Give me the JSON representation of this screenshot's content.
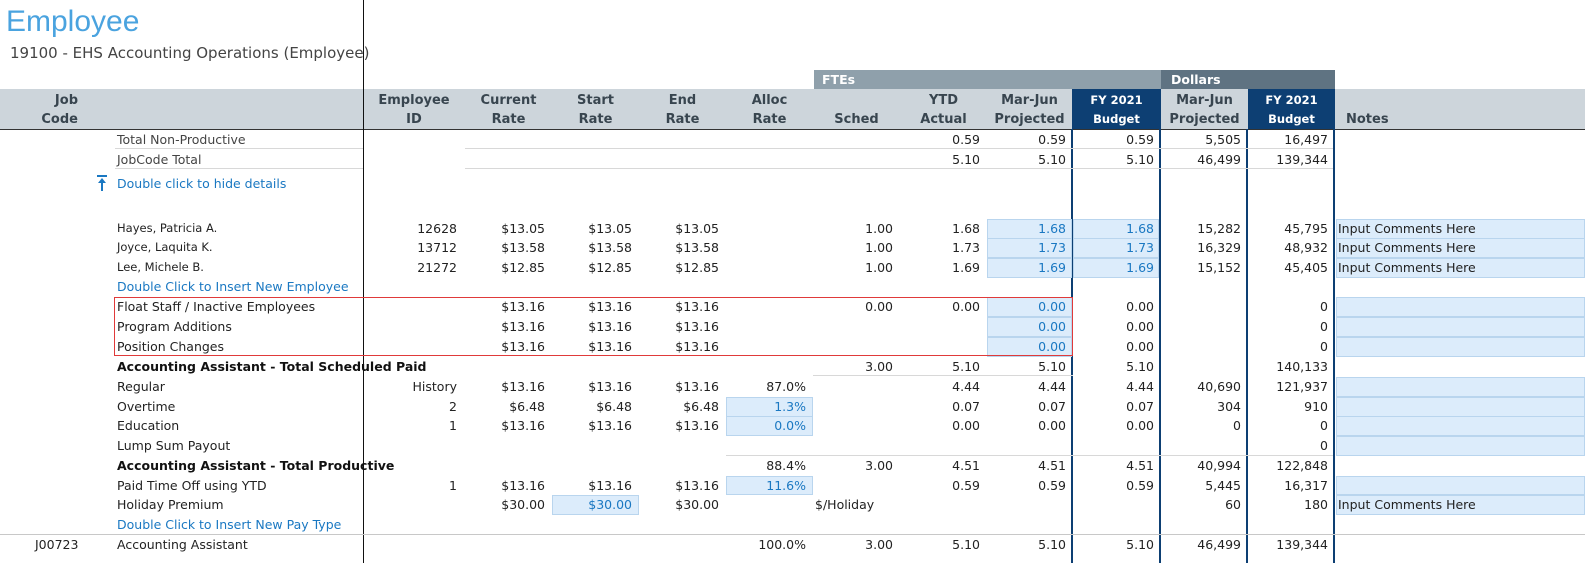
{
  "title": "Employee",
  "subtitle": "19100 - EHS Accounting Operations (Employee)",
  "group_headers": {
    "ftes": "FTEs",
    "dollars": "Dollars"
  },
  "columns": {
    "job_code": [
      "Job",
      "Code"
    ],
    "employee_id": [
      "Employee",
      "ID"
    ],
    "current_rate": [
      "Current",
      "Rate"
    ],
    "start_rate": [
      "Start",
      "Rate"
    ],
    "end_rate": [
      "End",
      "Rate"
    ],
    "alloc_rate": [
      "Alloc",
      "Rate"
    ],
    "sched": "Sched",
    "ytd_actual": [
      "YTD",
      "Actual"
    ],
    "mar_jun_projected": [
      "Mar-Jun",
      "Projected"
    ],
    "fy2021_budget": [
      "FY 2021",
      "Budget"
    ],
    "dollars_mar_jun": [
      "Mar-Jun",
      "Projected"
    ],
    "dollars_fy2021": [
      "FY 2021",
      "Budget"
    ],
    "notes": "Notes"
  },
  "totals": {
    "non_productive": {
      "label": "Total Non-Productive",
      "ytd": "0.59",
      "mj": "0.59",
      "bud": "0.59",
      "d_mj": "5,505",
      "d_bud": "16,497"
    },
    "jobcode": {
      "label": "JobCode Total",
      "ytd": "5.10",
      "mj": "5.10",
      "bud": "5.10",
      "d_mj": "46,499",
      "d_bud": "139,344"
    }
  },
  "hide_details": "Double click to hide details",
  "employees": [
    {
      "name": "Hayes, Patricia A.",
      "id": "12628",
      "cur": "$13.05",
      "start": "$13.05",
      "end": "$13.05",
      "sched": "1.00",
      "ytd": "1.68",
      "mj": "1.68",
      "bud": "1.68",
      "d_mj": "15,282",
      "d_bud": "45,795",
      "note": "Input Comments Here"
    },
    {
      "name": "Joyce, Laquita K.",
      "id": "13712",
      "cur": "$13.58",
      "start": "$13.58",
      "end": "$13.58",
      "sched": "1.00",
      "ytd": "1.73",
      "mj": "1.73",
      "bud": "1.73",
      "d_mj": "16,329",
      "d_bud": "48,932",
      "note": "Input Comments Here"
    },
    {
      "name": "Lee, Michele B.",
      "id": "21272",
      "cur": "$12.85",
      "start": "$12.85",
      "end": "$12.85",
      "sched": "1.00",
      "ytd": "1.69",
      "mj": "1.69",
      "bud": "1.69",
      "d_mj": "15,152",
      "d_bud": "45,405",
      "note": "Input Comments Here"
    }
  ],
  "insert_employee": "Double Click to Insert New Employee",
  "float_rows": [
    {
      "label": "Float Staff / Inactive Employees",
      "cur": "$13.16",
      "start": "$13.16",
      "end": "$13.16",
      "sched": "0.00",
      "ytd": "0.00",
      "mj": "0.00",
      "bud": "0.00",
      "d_bud": "0"
    },
    {
      "label": "Program Additions",
      "cur": "$13.16",
      "start": "$13.16",
      "end": "$13.16",
      "sched": "",
      "ytd": "",
      "mj": "0.00",
      "bud": "0.00",
      "d_bud": "0"
    },
    {
      "label": "Position Changes",
      "cur": "$13.16",
      "start": "$13.16",
      "end": "$13.16",
      "sched": "",
      "ytd": "",
      "mj": "0.00",
      "bud": "0.00",
      "d_bud": "0"
    }
  ],
  "total_scheduled": {
    "label_a": "Accounting Assistant",
    "label_b": " - Total Scheduled Paid",
    "sched": "3.00",
    "ytd": "5.10",
    "mj": "5.10",
    "bud": "5.10",
    "d_bud": "140,133"
  },
  "pay_rows": [
    {
      "label": "Regular",
      "id": "History",
      "cur": "$13.16",
      "start": "$13.16",
      "end": "$13.16",
      "alloc": "87.0%",
      "ytd": "4.44",
      "mj": "4.44",
      "bud": "4.44",
      "d_mj": "40,690",
      "d_bud": "121,937"
    },
    {
      "label": "Overtime",
      "id": "2",
      "cur": "$6.48",
      "start": "$6.48",
      "end": "$6.48",
      "alloc": "1.3%",
      "ytd": "0.07",
      "mj": "0.07",
      "bud": "0.07",
      "d_mj": "304",
      "d_bud": "910"
    },
    {
      "label": "Education",
      "id": "1",
      "cur": "$13.16",
      "start": "$13.16",
      "end": "$13.16",
      "alloc": "0.0%",
      "ytd": "0.00",
      "mj": "0.00",
      "bud": "0.00",
      "d_mj": "0",
      "d_bud": "0"
    },
    {
      "label": "Lump Sum Payout",
      "id": "",
      "cur": "",
      "start": "",
      "end": "",
      "alloc": "",
      "ytd": "",
      "mj": "",
      "bud": "",
      "d_mj": "",
      "d_bud": "0"
    }
  ],
  "total_productive": {
    "label_a": "Accounting Assistant",
    "label_b": " - Total Productive",
    "alloc": "88.4%",
    "sched": "3.00",
    "ytd": "4.51",
    "mj": "4.51",
    "bud": "4.51",
    "d_mj": "40,994",
    "d_bud": "122,848"
  },
  "pto": {
    "label": "Paid Time Off using YTD",
    "id": "1",
    "cur": "$13.16",
    "start": "$13.16",
    "end": "$13.16",
    "alloc": "11.6%",
    "ytd": "0.59",
    "mj": "0.59",
    "bud": "0.59",
    "d_mj": "5,445",
    "d_bud": "16,317"
  },
  "holiday": {
    "label": "Holiday Premium",
    "cur": "$30.00",
    "start": "$30.00",
    "end": "$30.00",
    "unit": "$/Holiday",
    "d_mj": "60",
    "d_bud": "180",
    "note": "Input Comments Here"
  },
  "insert_paytype": "Double Click to Insert New Pay Type",
  "footer": {
    "code": "J00723",
    "label": "Accounting Assistant",
    "alloc": "100.0%",
    "sched": "3.00",
    "ytd": "5.10",
    "mj": "5.10",
    "bud": "5.10",
    "d_mj": "46,499",
    "d_bud": "139,344"
  },
  "colors": {
    "header_gray": "#cdd5db",
    "group_gray": "#8fa0ab",
    "navy": "#0d3f73",
    "link_blue": "#1a78c2",
    "input_blue": "#dcecfb",
    "highlight_red": "#e03a3a"
  }
}
